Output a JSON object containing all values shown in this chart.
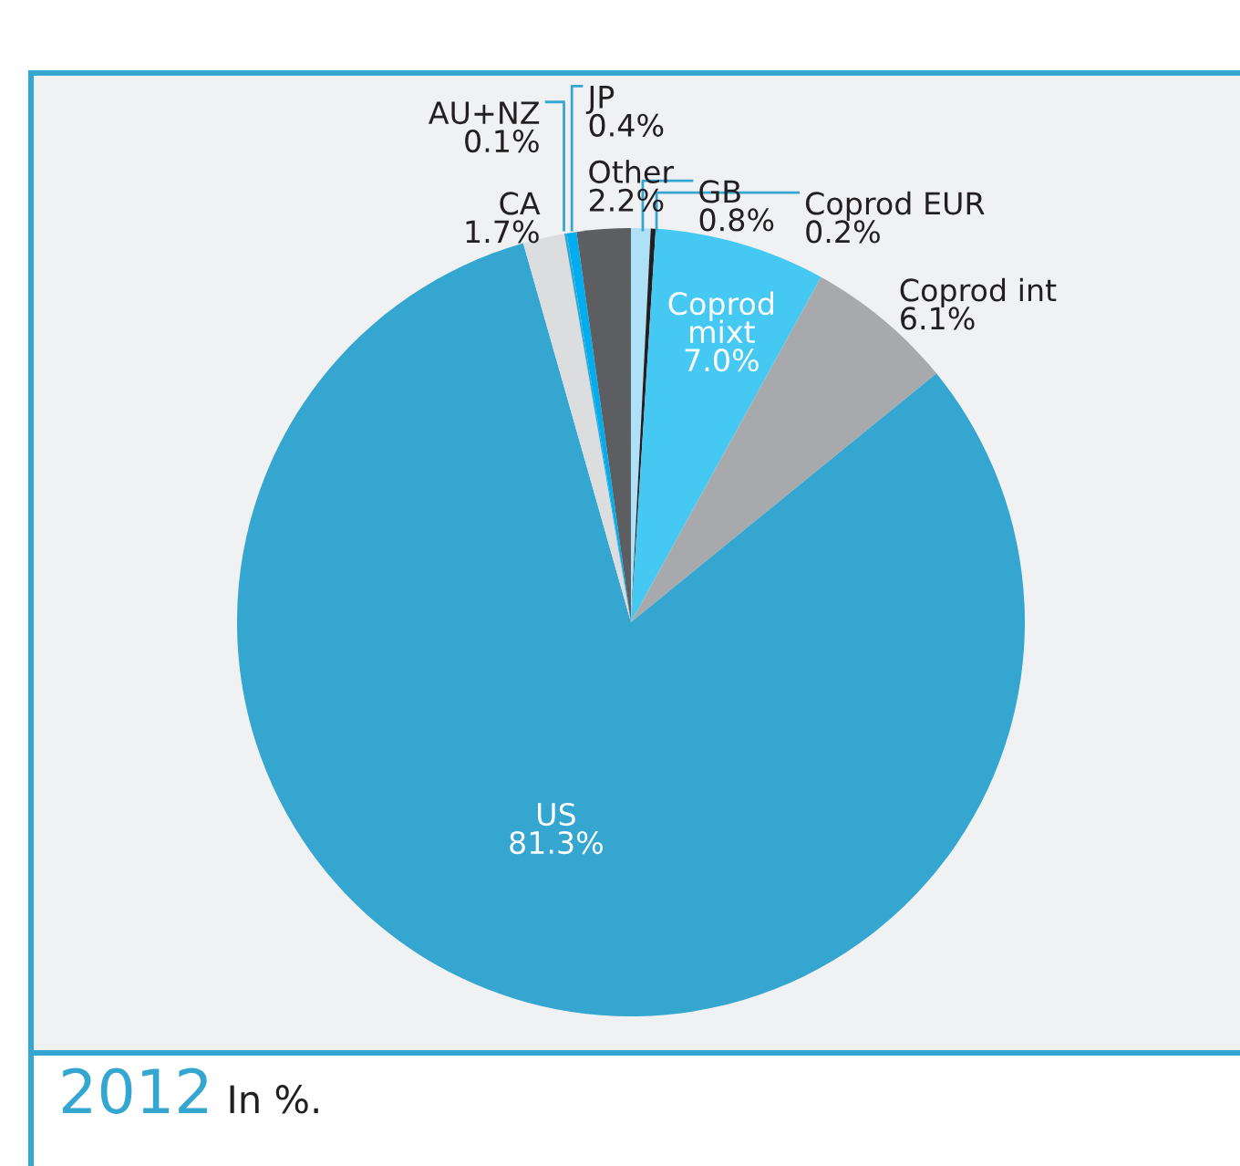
{
  "chart_data": {
    "type": "pie",
    "title": "2012",
    "subtitle": "In %.",
    "categories": [
      "GB",
      "Coprod EUR",
      "Coprod mixt",
      "Coprod int",
      "US",
      "CA",
      "AU+NZ",
      "JP",
      "Other"
    ],
    "values": [
      0.8,
      0.2,
      7.0,
      6.1,
      81.3,
      1.7,
      0.1,
      0.4,
      2.2
    ],
    "colors": [
      "#aee0f7",
      "#231f20",
      "#45c8f2",
      "#a7a9ac",
      "#35a6cf",
      "#dcdddf",
      "#35a6cf",
      "#00aeef",
      "#5d5e61"
    ],
    "value_labels": [
      "0.8%",
      "0.2%",
      "7.0%",
      "6.1%",
      "81.3%",
      "1.7%",
      "0.1%",
      "0.4%",
      "2.2%"
    ]
  }
}
